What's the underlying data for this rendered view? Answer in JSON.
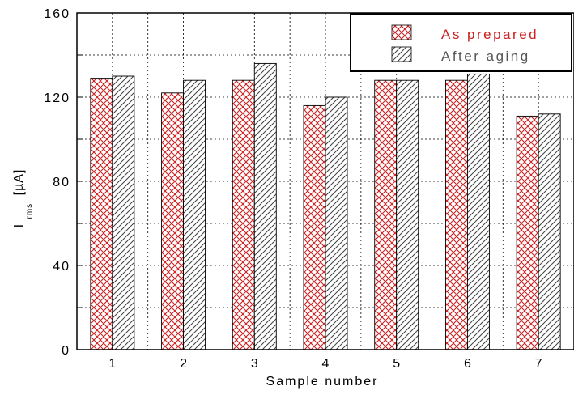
{
  "chart_data": {
    "type": "bar",
    "title": "",
    "xlabel": "Sample number",
    "ylabel": {
      "main": "I",
      "subscript": "rms",
      "unit": "[µA]"
    },
    "categories": [
      "1",
      "2",
      "3",
      "4",
      "5",
      "6",
      "7"
    ],
    "series": [
      {
        "name": "As prepared",
        "values": [
          129,
          122,
          128,
          116,
          128,
          128,
          111
        ],
        "color": "#cc2020",
        "pattern": "crosshatch"
      },
      {
        "name": "After aging",
        "values": [
          130,
          128,
          136,
          120,
          128,
          131,
          112
        ],
        "color": "#404040",
        "pattern": "diagonal"
      }
    ],
    "ylim": [
      0,
      160
    ],
    "yticks": [
      "0",
      "40",
      "80",
      "120",
      "160"
    ],
    "grid": true,
    "legend_position": "top-right"
  }
}
